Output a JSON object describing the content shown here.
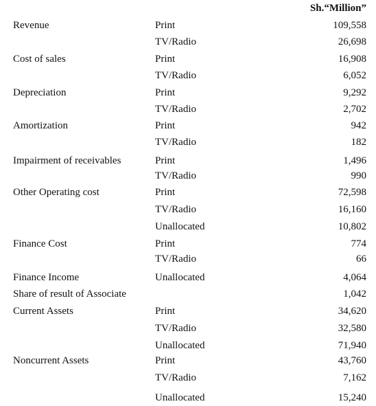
{
  "header": {
    "unit": "Sh.“Million”"
  },
  "rows": [
    {
      "label": "Revenue",
      "segment": "Print",
      "amount": "109,558"
    },
    {
      "label": "",
      "segment": "TV/Radio",
      "amount": "26,698"
    },
    {
      "label": "Cost of sales",
      "segment": "Print",
      "amount": "16,908"
    },
    {
      "label": "",
      "segment": "TV/Radio",
      "amount": "6,052"
    },
    {
      "label": "Depreciation",
      "segment": "Print",
      "amount": "9,292"
    },
    {
      "label": "",
      "segment": "TV/Radio",
      "amount": "2,702"
    },
    {
      "label": "Amortization",
      "segment": "Print",
      "amount": "942"
    },
    {
      "label": "",
      "segment": "TV/Radio",
      "amount": "182"
    },
    {
      "label": "Impairment of receivables",
      "segment": "Print",
      "amount": "1,496"
    },
    {
      "label": "",
      "segment": "TV/Radio",
      "amount": "990"
    },
    {
      "label": "Other Operating cost",
      "segment": "Print",
      "amount": "72,598"
    },
    {
      "label": "",
      "segment": "TV/Radio",
      "amount": "16,160"
    },
    {
      "label": "",
      "segment": "Unallocated",
      "amount": "10,802"
    },
    {
      "label": "Finance Cost",
      "segment": "Print",
      "amount": "774"
    },
    {
      "label": "",
      "segment": "TV/Radio",
      "amount": "66"
    },
    {
      "label": "Finance Income",
      "segment": "Unallocated",
      "amount": "4,064"
    },
    {
      "label": "Share of result of Associate",
      "segment": "",
      "amount": "1,042"
    },
    {
      "label": "Current Assets",
      "segment": "Print",
      "amount": "34,620"
    },
    {
      "label": "",
      "segment": "TV/Radio",
      "amount": "32,580"
    },
    {
      "label": "",
      "segment": "Unallocated",
      "amount": "71,940"
    },
    {
      "label": "Noncurrent Assets",
      "segment": "Print",
      "amount": "43,760"
    },
    {
      "label": "",
      "segment": "TV/Radio",
      "amount": "7,162"
    },
    {
      "label": "",
      "segment": "Unallocated",
      "amount": "15,240"
    }
  ]
}
